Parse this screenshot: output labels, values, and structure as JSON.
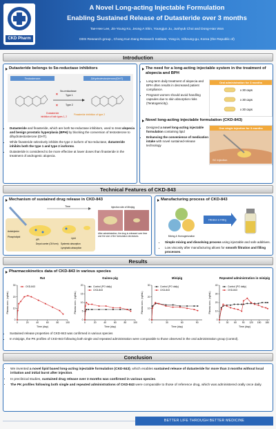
{
  "header": {
    "title": "A Novel Long-acting Injectable Formulation",
    "subtitle": "Enabling Sustained Release of Dutasteride over 3 months",
    "authors": "Tae-Hee Lee, Jin-Young Ko, Jeong A Shin, Youngjun Ju, Junhyuk Choi and Dong-Han Won",
    "affiliation": "DDS Research group , Chong Kun Dang Research Institute, Yong-in, Giheung-gu, Korea (the Republic of)",
    "logo": "CKD Pharm"
  },
  "sections": {
    "introduction": "Introduction",
    "technical": "Technical Features of CKD-843",
    "results": "Results",
    "conclusion": "Conclusion"
  },
  "intro": {
    "left": {
      "heading": "Dutasteride belongs to 5α-reductase inhibitors",
      "diagram": {
        "substrate": "Testosterone",
        "product": "Dihydrotestosterone(DHT)",
        "enzyme": "5α-reductase",
        "type1": "Type 1",
        "type2": "Type 2",
        "dutasteride": "Dutasteride",
        "dutasteride_note": "inhibition of both types 1, 2",
        "finasteride": "Finasteride inhibition of type 2"
      },
      "bullets": [
        [
          {
            "text": "Dutasteride",
            "bold": true
          },
          " and finasteride, which are both 5α-reductase inhibitors, used to treat ",
          {
            "text": "alopecia and benign prostatic hyperplasia (BPH)",
            "bold": true
          },
          " by blocking the conversion of testosterone to dihydrotestosterone (DHT)."
        ],
        [
          "While finasteride selectively inhibits the type 2 isoform of 5α-reductase, ",
          {
            "text": "dutasteride inhibits both the type 1 and type 2 isoforms",
            "bold": true
          },
          "."
        ],
        [
          "Dutasteride is considered to be more effective at lower doses than finasteride in the treatment of androgenic alopecia."
        ]
      ]
    },
    "right": {
      "heading": "The need for a long-acting injectable system in the treatment of alopecia and BPH",
      "bullets": [
        [
          "Long-term daily treatment of alopecia and BPH often results in decreased patient compliance."
        ],
        [
          "Pregnant women should avoid handling capsules due to skin absorption risks (Teratogenicity)."
        ]
      ],
      "oral_box": {
        "title": "Oral administration for 3 months",
        "rows": [
          "x 30 caps",
          "x 30 caps",
          "x 30 caps"
        ]
      },
      "heading2": "Novel long-acting injectable formulation (CKD-843)",
      "bullets2": [
        [
          "Designed ",
          {
            "text": "a novel long-acting injectable formulation",
            "bold": true
          },
          " containing lipid"
        ],
        [
          {
            "text": "Enhancing the convenience of medication intake",
            "bold": true
          },
          " with novel sustained-release technology"
        ]
      ],
      "injection_box": {
        "title": "One single injection for 3 months",
        "label": "SC injection"
      }
    }
  },
  "technical": {
    "mechanism": {
      "heading": "Mechanism of sustained drug release in CKD-843",
      "time": "Time",
      "site": "Injection site of Minipig",
      "caption": "After administration, the drug is released over time and the size of the formulation decreases.",
      "autoinjector": "Autoinjector",
      "phospholipid": "Phospholipid",
      "api": "API",
      "lipid": "Lipid",
      "depot": "Depot carrier (Oil form)",
      "systemic": "Systemic absorption",
      "lymphatic": "Lymphatic absorption"
    },
    "manufacturing": {
      "heading": "Manufacturing process of CKD-843",
      "mixing": "Mixing & Homogenization",
      "filling": "Filtration & Filling",
      "bullets": [
        [
          {
            "text": "Simple mixing and dissolving process",
            "bold": true
          },
          " using injectable and safe additives."
        ],
        [
          "Low viscosity after manufacturing allows for ",
          {
            "text": "smooth filtration and filling processes",
            "bold": true
          },
          "."
        ]
      ]
    }
  },
  "results": {
    "heading": "Pharmacokinetics data of CKD-843 in various species",
    "bullets": [
      [
        "Sustained release properties of CKD-843 was confirmed in various species"
      ],
      [
        "In minipigs, the PK profiles of CKD-843 following both single and repeated administration were comparable to those observed in the oral administration group (control)."
      ]
    ]
  },
  "chart_data": [
    {
      "type": "line",
      "title": "Rat",
      "xlabel": "Time (day)",
      "ylabel": "Plasma conc. (ng/mL)",
      "xlim": [
        0,
        100
      ],
      "xticks": [
        0,
        20,
        40,
        60,
        80,
        100
      ],
      "ylim": [
        0,
        30
      ],
      "yticks": [
        0,
        10,
        20,
        30
      ],
      "x": [
        0,
        1,
        3,
        7,
        14,
        21,
        28,
        42,
        56,
        70,
        84,
        91
      ],
      "series": [
        {
          "name": "CKD-843",
          "color": "#d42a2a",
          "values": [
            0,
            8,
            14,
            16,
            20,
            21,
            20,
            17,
            14,
            11,
            8,
            5
          ]
        }
      ]
    },
    {
      "type": "line",
      "title": "Guinea pig",
      "xlabel": "Time (day)",
      "ylabel": "Plasma conc. (ng/mL)",
      "xlim": [
        0,
        100
      ],
      "xticks": [
        0,
        20,
        40,
        60,
        80,
        100
      ],
      "ylim": [
        0,
        20
      ],
      "yticks": [
        0,
        5,
        10,
        15,
        20
      ],
      "x": [
        0,
        1,
        3,
        7,
        14,
        28,
        42,
        56,
        70,
        84,
        91
      ],
      "series": [
        {
          "name": "Control (PO daily)",
          "color": "#222222",
          "values": [
            0,
            5,
            6,
            6,
            6,
            6,
            6,
            6,
            6,
            6,
            6
          ]
        },
        {
          "name": "CKD-843",
          "color": "#d42a2a",
          "values": [
            0,
            8,
            10,
            9,
            9,
            8,
            8,
            7,
            7,
            6,
            5
          ]
        }
      ]
    },
    {
      "type": "line",
      "title": "Minipig",
      "xlabel": "Time (day)",
      "ylabel": "Plasma conc. (ng/mL)",
      "xlim": [
        0,
        100
      ],
      "xticks": [
        0,
        30,
        60,
        90
      ],
      "ylim": [
        0,
        30
      ],
      "yticks": [
        0,
        10,
        20,
        30
      ],
      "x": [
        0,
        1,
        7,
        14,
        28,
        42,
        56,
        70,
        84,
        91
      ],
      "series": [
        {
          "name": "Control (PO daily)",
          "color": "#222222",
          "values": [
            0,
            12,
            14,
            14,
            13,
            13,
            12,
            12,
            12,
            12
          ]
        },
        {
          "name": "CKD-843",
          "color": "#d42a2a",
          "values": [
            0,
            10,
            15,
            14,
            12,
            11,
            11,
            10,
            9,
            8
          ]
        }
      ]
    },
    {
      "type": "line",
      "title": "Repeated administration in minipig",
      "xlabel": "Time (day)",
      "ylabel": "Plasma conc. (ng/mL)",
      "xlim": [
        0,
        190
      ],
      "xticks": [
        0,
        30,
        60,
        90,
        120,
        150,
        180
      ],
      "ylim": [
        0,
        40
      ],
      "yticks": [
        0,
        10,
        20,
        30,
        40
      ],
      "x": [
        0,
        7,
        14,
        28,
        42,
        56,
        70,
        84,
        91,
        105,
        119,
        133,
        147,
        161,
        175,
        182
      ],
      "series": [
        {
          "name": "Control (PO daily)",
          "color": "#222222",
          "values": [
            0,
            14,
            16,
            17,
            17,
            18,
            18,
            18,
            18,
            19,
            19,
            19,
            19,
            20,
            20,
            20
          ]
        },
        {
          "name": "CKD-843",
          "color": "#d42a2a",
          "values": [
            0,
            12,
            18,
            16,
            14,
            13,
            12,
            10,
            22,
            25,
            20,
            18,
            17,
            15,
            14,
            13
          ]
        }
      ]
    }
  ],
  "conclusion": {
    "bullets": [
      [
        "We invented ",
        {
          "text": "a novel lipid based long-acting injectable formulation (CKD-843)",
          "bold": true
        },
        ", which enables ",
        {
          "text": "sustained release of dutasteride for more than 3 months without local irritation and initial burst after injection",
          "bold": true
        },
        "."
      ],
      [
        "In preclinical studies, ",
        {
          "text": "sustained drug release over 3 months was confirmed in various species",
          "bold": true
        },
        "."
      ],
      [
        {
          "text": "The PK profiles following both single and repeated administrations of CKD-843",
          "bold": true
        },
        " were comparable to those of reference drug, which was administered orally once daily."
      ]
    ]
  },
  "footer": "BETTER LIFE THROUGH BETTER MEDICINE"
}
